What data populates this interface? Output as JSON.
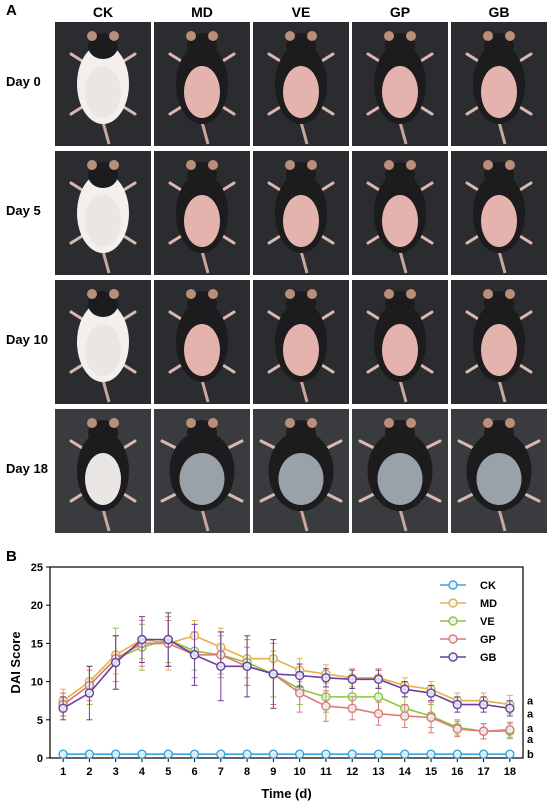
{
  "panel_a": {
    "label": "A",
    "columns": [
      "CK",
      "MD",
      "VE",
      "GP",
      "GB"
    ],
    "rows": [
      "Day 0",
      "Day 5",
      "Day 10",
      "Day 18"
    ],
    "photo_colors": {
      "background": "#2b2c30",
      "fur_dark": "#1c1b1d",
      "belly_pale": "#e9e6e3",
      "belly_pink": "#e5b3ad",
      "belly_bluegray": "#9aa1a8"
    }
  },
  "panel_b": {
    "label": "B"
  },
  "chart_data": {
    "type": "line",
    "title": "",
    "xlabel": "Time (d)",
    "ylabel": "DAI Score",
    "x": [
      1,
      2,
      3,
      4,
      5,
      6,
      7,
      8,
      9,
      10,
      11,
      12,
      13,
      14,
      15,
      16,
      17,
      18
    ],
    "xlim": [
      0.5,
      18.5
    ],
    "ylim": [
      0,
      25
    ],
    "yticks": [
      0,
      5,
      10,
      15,
      20,
      25
    ],
    "grid": false,
    "legend_position": "top-right",
    "series": [
      {
        "name": "CK",
        "color": "#3aa5d8",
        "values": [
          0.5,
          0.5,
          0.5,
          0.5,
          0.5,
          0.5,
          0.5,
          0.5,
          0.5,
          0.5,
          0.5,
          0.5,
          0.5,
          0.5,
          0.5,
          0.5,
          0.5,
          0.5
        ],
        "errors": [
          0,
          0,
          0,
          0,
          0,
          0,
          0,
          0,
          0,
          0,
          0,
          0,
          0,
          0,
          0,
          0,
          0,
          0
        ],
        "label": "b"
      },
      {
        "name": "MD",
        "color": "#e8b04a",
        "values": [
          7.5,
          10,
          13.5,
          15.5,
          15,
          16,
          14.5,
          13,
          13,
          11.5,
          11,
          10.5,
          10.5,
          9.5,
          9,
          7.5,
          7.5,
          7
        ],
        "errors": [
          1.5,
          2,
          2.5,
          2.5,
          3.5,
          2,
          2.5,
          2.5,
          2.5,
          1.5,
          1.2,
          1.2,
          1.2,
          1,
          1,
          1,
          1,
          1.2
        ],
        "label": "a"
      },
      {
        "name": "VE",
        "color": "#8cc63f",
        "values": [
          7,
          9.5,
          13,
          14.5,
          15.5,
          14,
          13.5,
          12.5,
          11,
          9,
          8,
          8,
          8,
          6.5,
          5.5,
          4,
          3.5,
          3.5
        ],
        "errors": [
          1.5,
          2.5,
          4,
          3,
          3,
          2.5,
          2.5,
          3,
          3,
          2,
          2,
          2,
          2,
          1.5,
          1.5,
          1,
          1,
          1
        ],
        "label": "a"
      },
      {
        "name": "GP",
        "color": "#e07878",
        "values": [
          7,
          9.5,
          13,
          15,
          15,
          13.5,
          13.5,
          12,
          11,
          8.5,
          6.8,
          6.5,
          5.8,
          5.5,
          5.3,
          3.8,
          3.5,
          3.7
        ],
        "errors": [
          1.5,
          2,
          3,
          3,
          3,
          3,
          3,
          2.5,
          4,
          2.5,
          2,
          1.5,
          1.5,
          1.5,
          2,
          1,
          1,
          1
        ],
        "label": "a"
      },
      {
        "name": "GB",
        "color": "#6a3fa0",
        "values": [
          6.5,
          8.5,
          12.5,
          15.5,
          15.5,
          13.5,
          12,
          12,
          11,
          10.8,
          10.5,
          10.3,
          10.3,
          9,
          8.5,
          7,
          7,
          6.5
        ],
        "errors": [
          1.5,
          3.5,
          3.5,
          3,
          3.5,
          4,
          4.5,
          4,
          4.5,
          1.5,
          1.2,
          1.2,
          1.2,
          1,
          1,
          1,
          1,
          1
        ],
        "label": "a"
      }
    ]
  }
}
